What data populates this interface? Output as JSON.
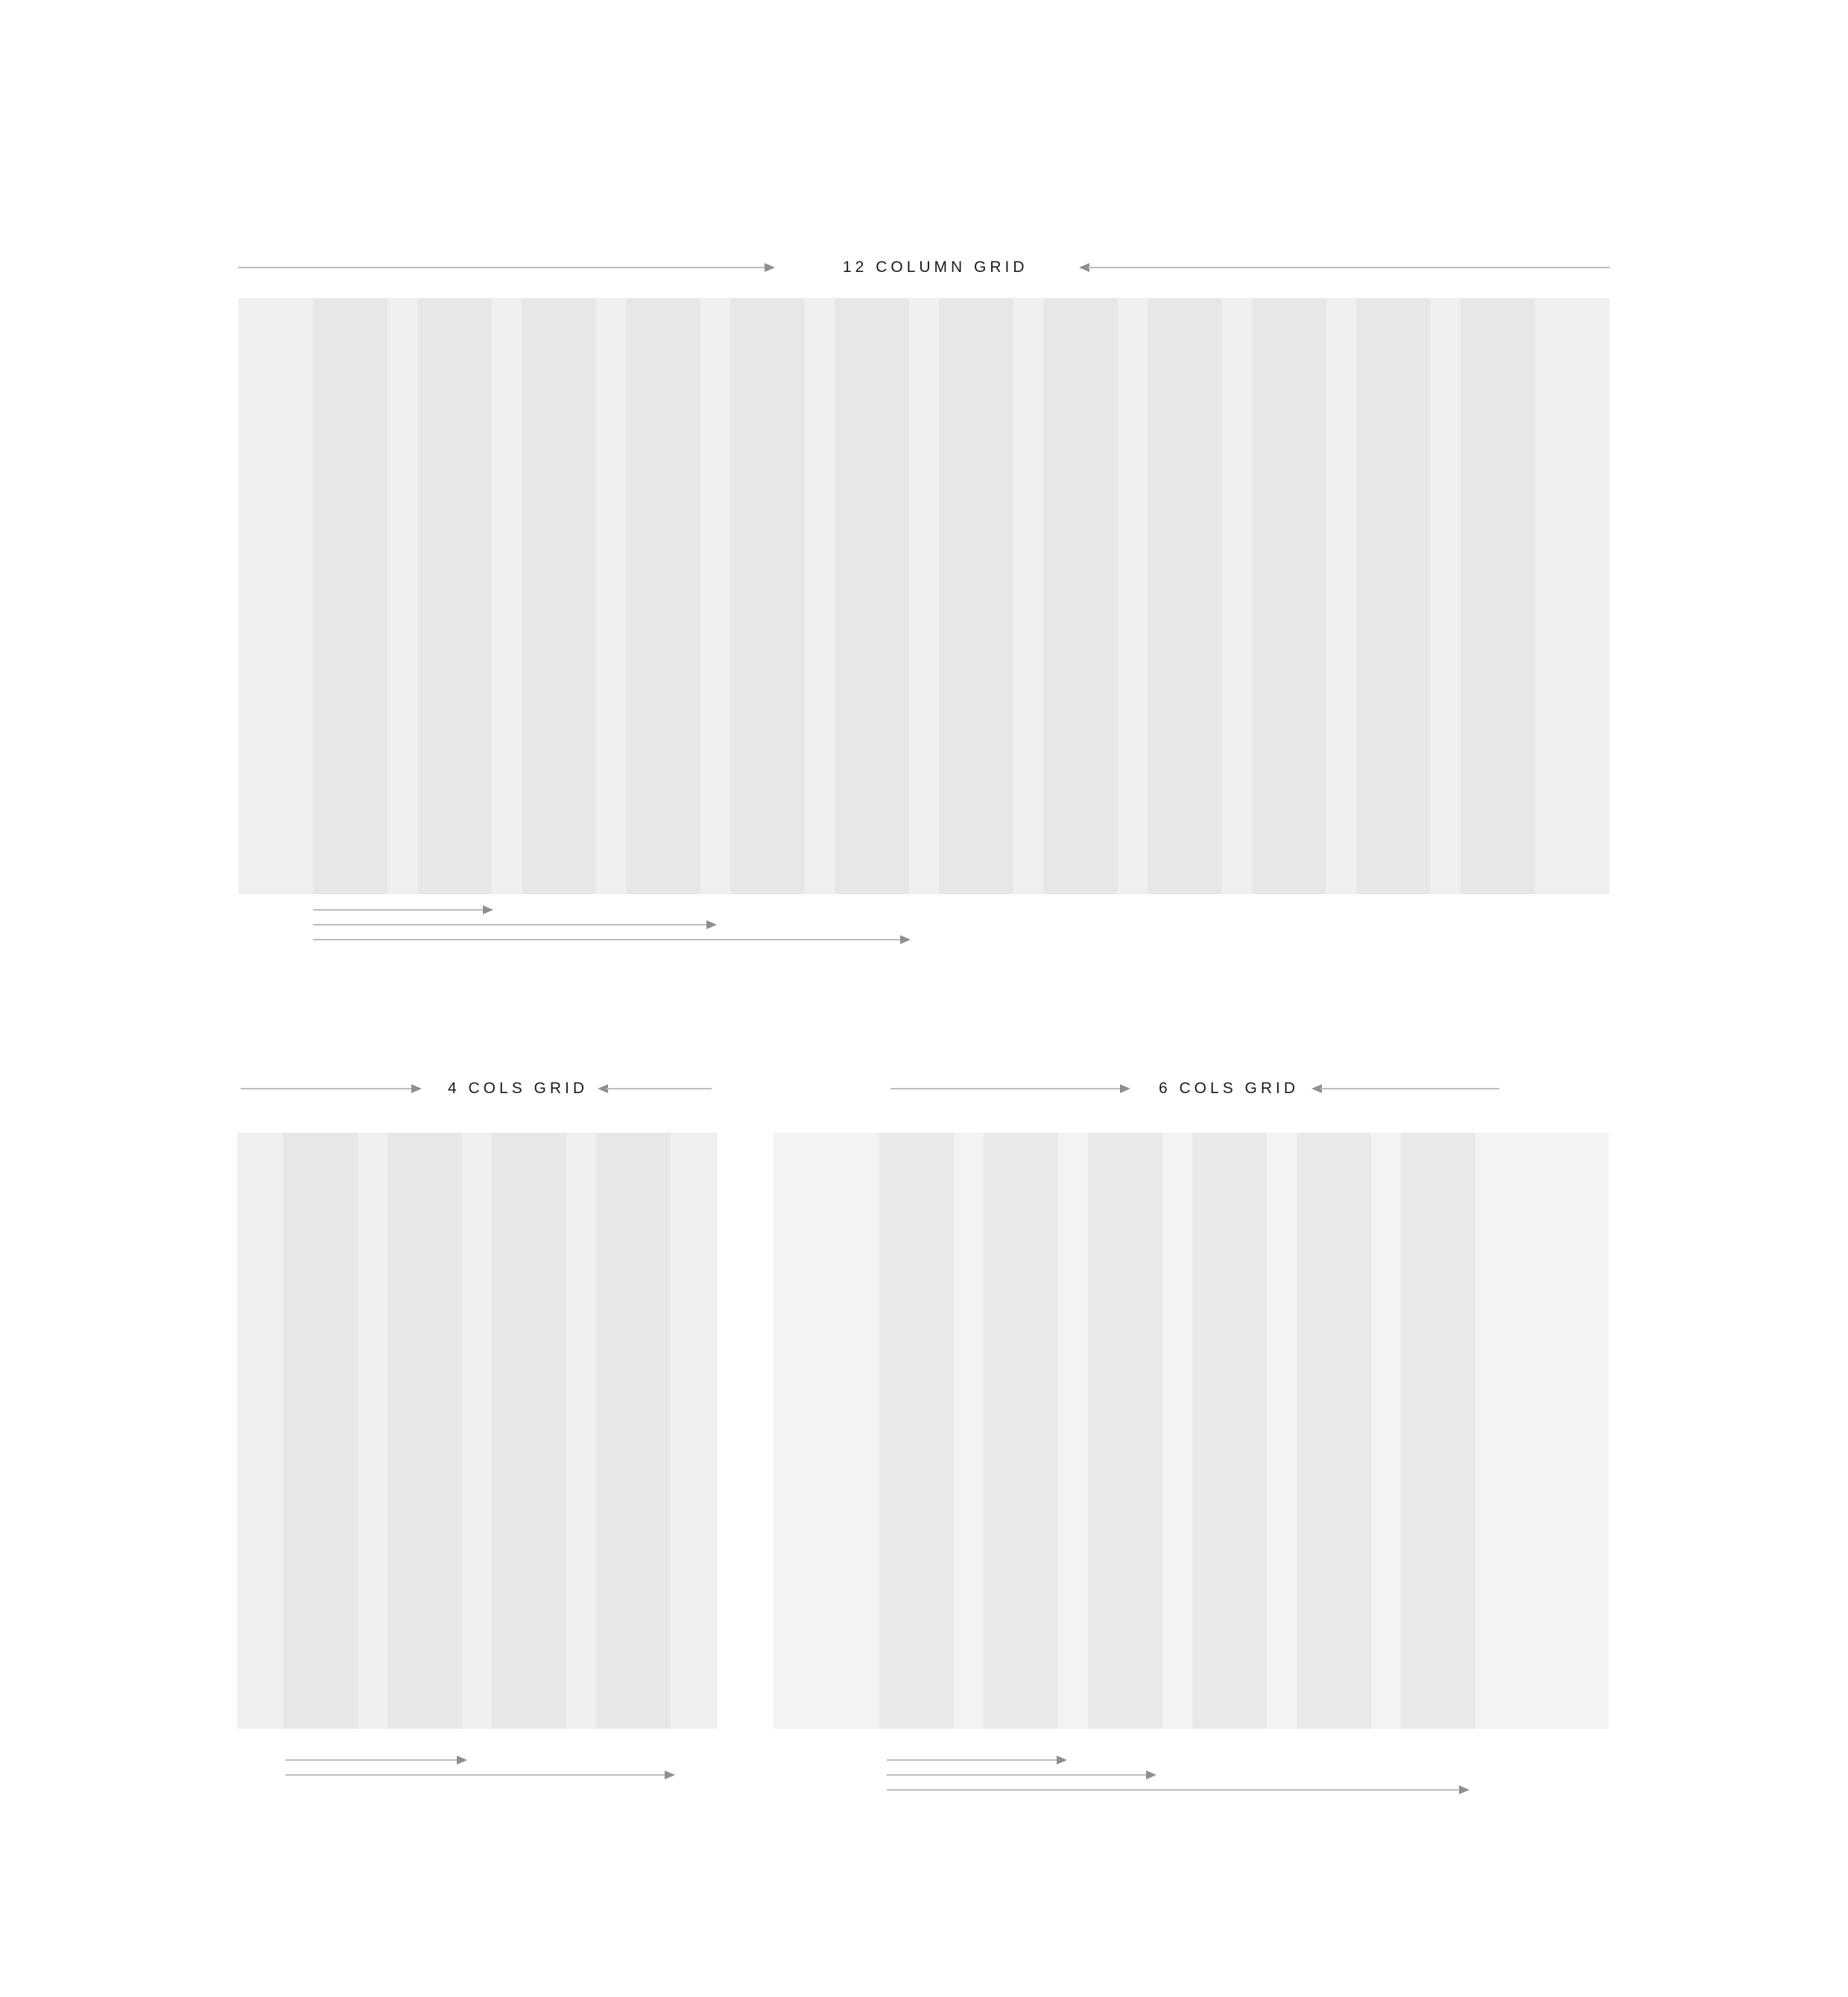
{
  "colors": {
    "background": "#ffffff",
    "panel_12": "#f0f0f0",
    "column_12": "#e7e7e7",
    "panel_4": "#f0f0f0",
    "column_4": "#e7e7e7",
    "panel_6": "#f3f3f3",
    "column_6": "#e9e9e9",
    "guide_line": "#bdbdbd",
    "arrowhead": "#8f8f8f",
    "title_text": "#1a1a1a"
  },
  "grids": [
    {
      "key": "grid12",
      "title": "12 COLUMN GRID",
      "columns": 12,
      "span_arrows": 3
    },
    {
      "key": "grid4",
      "title": "4 COLS GRID",
      "columns": 4,
      "span_arrows": 2
    },
    {
      "key": "grid6",
      "title": "6 COLS GRID",
      "columns": 6,
      "span_arrows": 3
    }
  ]
}
